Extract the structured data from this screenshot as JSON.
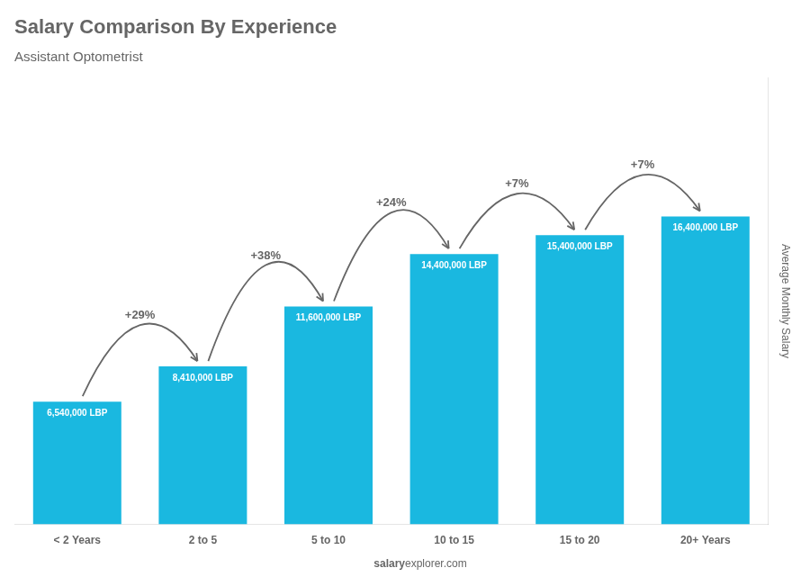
{
  "chart_data": {
    "type": "bar",
    "title": "Salary Comparison By Experience",
    "subtitle": "Assistant Optometrist",
    "ylabel": "Average Monthly Salary",
    "categories": [
      "< 2 Years",
      "2 to 5",
      "5 to 10",
      "10 to 15",
      "15 to 20",
      "20+ Years"
    ],
    "values": [
      6540000,
      8410000,
      11600000,
      14400000,
      15400000,
      16400000
    ],
    "value_labels": [
      "6,540,000 LBP",
      "8,410,000 LBP",
      "11,600,000 LBP",
      "14,400,000 LBP",
      "15,400,000 LBP",
      "16,400,000 LBP"
    ],
    "data_labels": true,
    "annotations": [
      "+29%",
      "+38%",
      "+24%",
      "+7%",
      "+7%"
    ],
    "watermark": [
      "salary",
      "explorer.com"
    ],
    "color": "#1ab8e0",
    "ylim": [
      0,
      23780000
    ],
    "tick_labels": "x",
    "grid": false
  }
}
